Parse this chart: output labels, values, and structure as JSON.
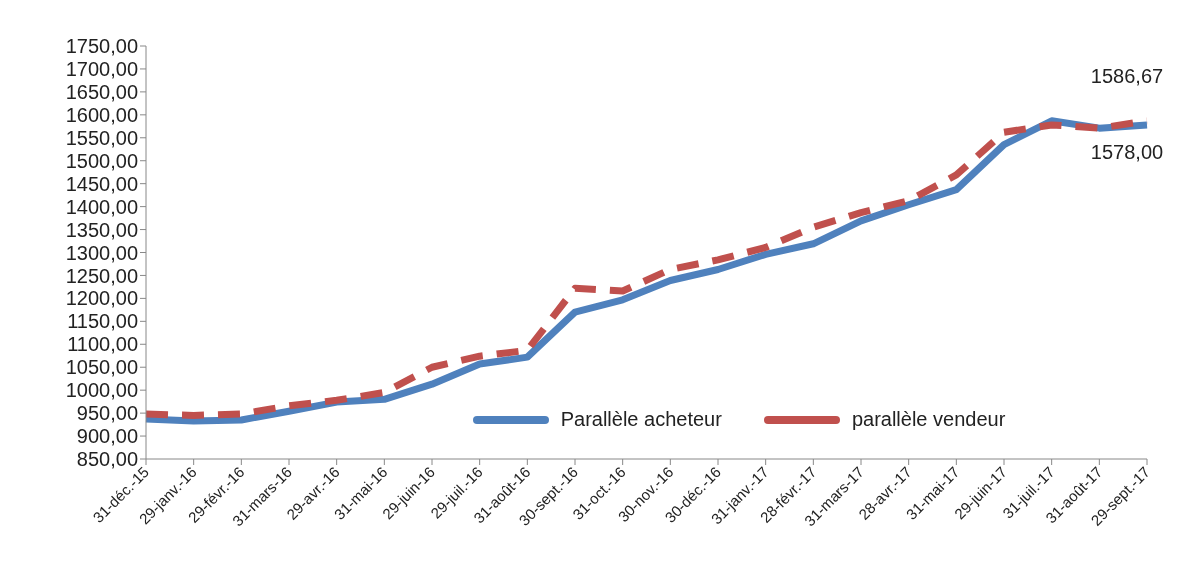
{
  "chart_data": {
    "type": "line",
    "categories": [
      "31-déc.-15",
      "29-janv.-16",
      "29-févr.-16",
      "31-mars-16",
      "29-avr.-16",
      "31-mai-16",
      "29-juin-16",
      "29-juil.-16",
      "31-août-16",
      "30-sept.-16",
      "31-oct.-16",
      "30-nov.-16",
      "30-déc.-16",
      "31-janv.-17",
      "28-févr.-17",
      "31-mars-17",
      "28-avr.-17",
      "31-mai-17",
      "29-juin-17",
      "31-juil.-17",
      "31-août-17",
      "29-sept.-17"
    ],
    "series": [
      {
        "name": "Parallèle acheteur",
        "color": "#4f81bd",
        "line_style": "solid",
        "values": [
          937,
          933,
          935,
          954,
          974,
          980,
          1013,
          1057,
          1072,
          1170,
          1197,
          1239,
          1263,
          1296,
          1319,
          1369,
          1404,
          1437,
          1535,
          1587,
          1571,
          1578
        ],
        "value_labels": [
          null,
          null,
          null,
          null,
          null,
          null,
          null,
          null,
          null,
          null,
          null,
          null,
          null,
          null,
          null,
          null,
          null,
          null,
          null,
          null,
          null,
          "1578,00"
        ]
      },
      {
        "name": "parallèle vendeur",
        "color": "#c0504d",
        "line_style": "dashed",
        "values": [
          948,
          945,
          948,
          966,
          978,
          995,
          1050,
          1074,
          1087,
          1222,
          1216,
          1263,
          1284,
          1311,
          1355,
          1387,
          1413,
          1469,
          1562,
          1578,
          1571,
          1586.67
        ],
        "value_labels": [
          null,
          null,
          null,
          null,
          null,
          null,
          null,
          null,
          null,
          null,
          null,
          null,
          null,
          null,
          null,
          null,
          null,
          null,
          null,
          null,
          null,
          "1586,67"
        ]
      }
    ],
    "ylim": [
      850,
      1750
    ],
    "yticks": [
      {
        "value": 850,
        "label": "850,00"
      },
      {
        "value": 900,
        "label": "900,00"
      },
      {
        "value": 950,
        "label": "950,00"
      },
      {
        "value": 1000,
        "label": "1000,00"
      },
      {
        "value": 1050,
        "label": "1050,00"
      },
      {
        "value": 1100,
        "label": "1100,00"
      },
      {
        "value": 1150,
        "label": "1150,00"
      },
      {
        "value": 1200,
        "label": "1200,00"
      },
      {
        "value": 1250,
        "label": "1250,00"
      },
      {
        "value": 1300,
        "label": "1300,00"
      },
      {
        "value": 1350,
        "label": "1350,00"
      },
      {
        "value": 1400,
        "label": "1400,00"
      },
      {
        "value": 1450,
        "label": "1450,00"
      },
      {
        "value": 1500,
        "label": "1500,00"
      },
      {
        "value": 1550,
        "label": "1550,00"
      },
      {
        "value": 1600,
        "label": "1600,00"
      },
      {
        "value": 1650,
        "label": "1650,00"
      },
      {
        "value": 1700,
        "label": "1700,00"
      },
      {
        "value": 1750,
        "label": "1750,00"
      }
    ],
    "grid": false,
    "legend": "bottom",
    "marker": "none"
  }
}
